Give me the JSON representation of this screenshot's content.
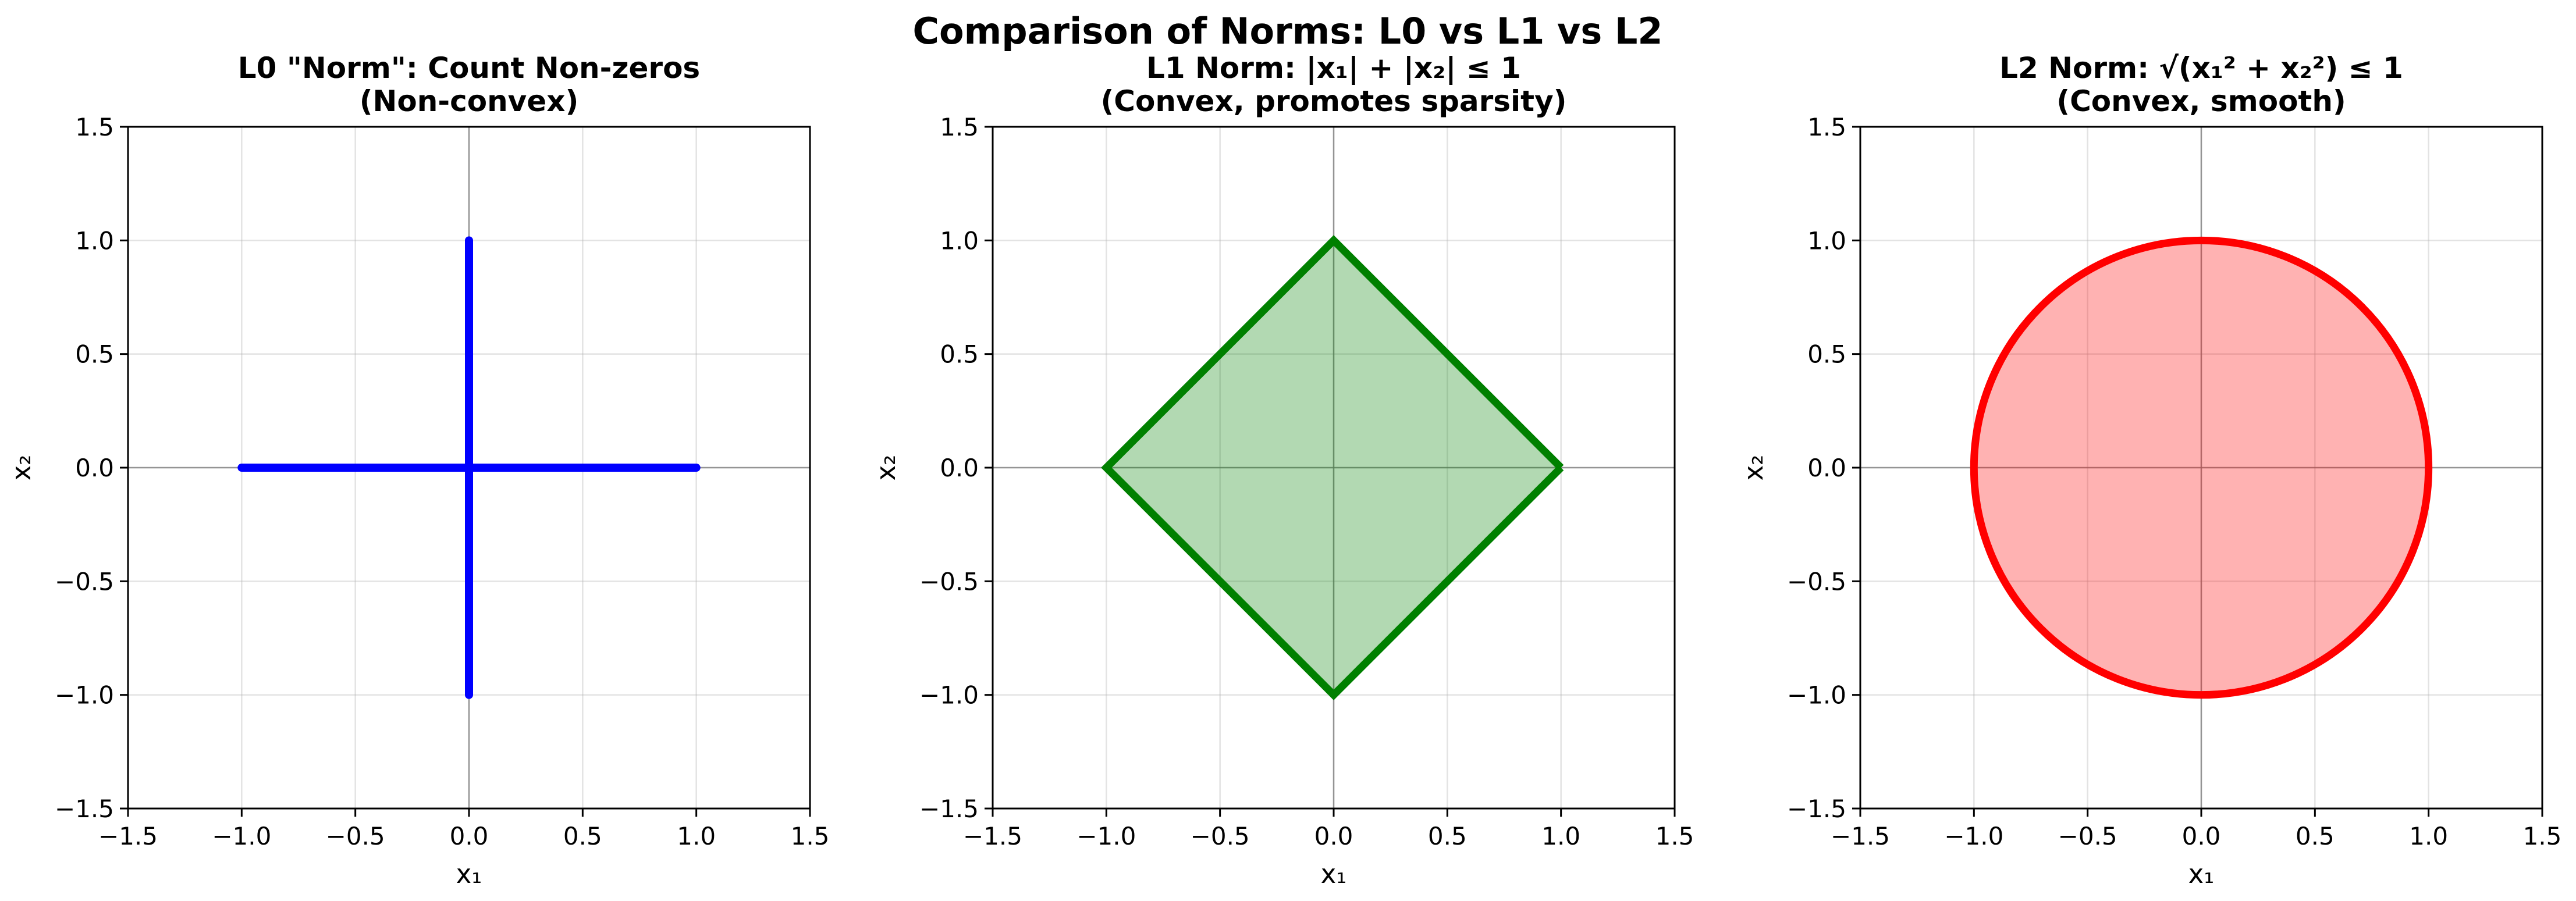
{
  "figure": {
    "suptitle": "Comparison of Norms: L0 vs L1 vs L2"
  },
  "chart_data": [
    {
      "type": "line",
      "title_line1": "L0 \"Norm\": Count Non-zeros",
      "title_line2": "(Non-convex)",
      "xlabel": "x₁",
      "ylabel": "x₂",
      "xlim": [
        -1.5,
        1.5
      ],
      "ylim": [
        -1.5,
        1.5
      ],
      "ticks": [
        -1.5,
        -1.0,
        -0.5,
        0.0,
        0.5,
        1.0,
        1.5
      ],
      "tick_labels": [
        "−1.5",
        "−1.0",
        "−0.5",
        "0.0",
        "0.5",
        "1.0",
        "1.5"
      ],
      "grid": true,
      "color": "#0000ff",
      "series": [
        {
          "x": [
            -1,
            1
          ],
          "y": [
            0,
            0
          ]
        },
        {
          "x": [
            0,
            0
          ],
          "y": [
            -1,
            1
          ]
        }
      ]
    },
    {
      "type": "area",
      "title_line1": "L1 Norm: |x₁| + |x₂| ≤ 1",
      "title_line2": "(Convex, promotes sparsity)",
      "xlabel": "x₁",
      "ylabel": "x₂",
      "xlim": [
        -1.5,
        1.5
      ],
      "ylim": [
        -1.5,
        1.5
      ],
      "ticks": [
        -1.5,
        -1.0,
        -0.5,
        0.0,
        0.5,
        1.0,
        1.5
      ],
      "tick_labels": [
        "−1.5",
        "−1.0",
        "−0.5",
        "0.0",
        "0.5",
        "1.0",
        "1.5"
      ],
      "grid": true,
      "color": "#008000",
      "fill_alpha": 0.3,
      "series": [
        {
          "x": [
            1,
            0,
            -1,
            0,
            1
          ],
          "y": [
            0,
            1,
            0,
            -1,
            0
          ]
        }
      ]
    },
    {
      "type": "area",
      "title_line1": "L2 Norm: √(x₁² + x₂²) ≤ 1",
      "title_line2": "(Convex, smooth)",
      "xlabel": "x₁",
      "ylabel": "x₂",
      "xlim": [
        -1.5,
        1.5
      ],
      "ylim": [
        -1.5,
        1.5
      ],
      "ticks": [
        -1.5,
        -1.0,
        -0.5,
        0.0,
        0.5,
        1.0,
        1.5
      ],
      "tick_labels": [
        "−1.5",
        "−1.0",
        "−0.5",
        "0.0",
        "0.5",
        "1.0",
        "1.5"
      ],
      "grid": true,
      "color": "#ff0000",
      "fill_alpha": 0.3,
      "shape": "unit-circle",
      "radius": 1
    }
  ]
}
